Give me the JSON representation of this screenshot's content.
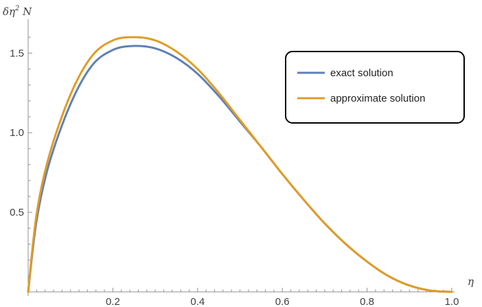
{
  "chart_data": {
    "type": "line",
    "ylabel_parts": {
      "main": "δη",
      "sup": "2",
      "tail": " N"
    },
    "xlabel": "η",
    "xlim": [
      0,
      1.0
    ],
    "ylim": [
      0,
      1.7
    ],
    "x_ticks": [
      {
        "value": 0.2,
        "label": "0.2"
      },
      {
        "value": 0.4,
        "label": "0.4"
      },
      {
        "value": 0.6,
        "label": "0.6"
      },
      {
        "value": 0.8,
        "label": "0.8"
      },
      {
        "value": 1.0,
        "label": "1.0"
      }
    ],
    "y_ticks": [
      {
        "value": 0.5,
        "label": "0.5"
      },
      {
        "value": 1.0,
        "label": "1.0"
      },
      {
        "value": 1.5,
        "label": "1.5"
      }
    ],
    "legend_position": "top-right",
    "series": [
      {
        "name": "exact solution",
        "color": "#5E81B5",
        "x": [
          0,
          0.02,
          0.05,
          0.1,
          0.15,
          0.2,
          0.25,
          0.3,
          0.35,
          0.4,
          0.45,
          0.5,
          0.55,
          0.6,
          0.65,
          0.7,
          0.75,
          0.8,
          0.85,
          0.9,
          0.95,
          1.0
        ],
        "y": [
          0,
          0.45,
          0.81,
          1.18,
          1.42,
          1.52,
          1.545,
          1.53,
          1.47,
          1.37,
          1.23,
          1.07,
          0.91,
          0.74,
          0.58,
          0.43,
          0.3,
          0.19,
          0.1,
          0.04,
          0.008,
          0
        ]
      },
      {
        "name": "approximate solution",
        "color": "#E19C24",
        "x": [
          0,
          0.02,
          0.05,
          0.1,
          0.15,
          0.2,
          0.25,
          0.3,
          0.35,
          0.4,
          0.45,
          0.5,
          0.55,
          0.6,
          0.65,
          0.7,
          0.75,
          0.8,
          0.85,
          0.9,
          0.95,
          1.0
        ],
        "y": [
          0,
          0.49,
          0.86,
          1.24,
          1.48,
          1.58,
          1.6,
          1.58,
          1.51,
          1.4,
          1.25,
          1.08,
          0.91,
          0.74,
          0.58,
          0.43,
          0.3,
          0.19,
          0.1,
          0.04,
          0.008,
          0
        ]
      }
    ]
  }
}
